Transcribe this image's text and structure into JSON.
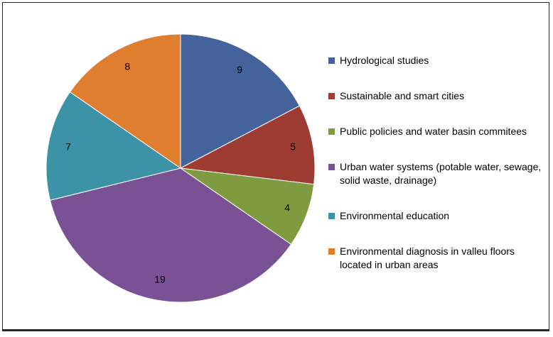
{
  "chart_data": {
    "type": "pie",
    "title": "",
    "categories": [
      "Hydrological studies",
      "Sustainable and smart cities",
      "Public policies and water basin commitees",
      "Urban water systems (potable water, sewage, solid waste, drainage)",
      "Environmental education",
      "Environmental diagnosis in valleu floors located in urban areas"
    ],
    "values": [
      9,
      5,
      4,
      19,
      7,
      8
    ],
    "data_labels": [
      "9",
      "5",
      "4",
      "19",
      "7",
      "8"
    ],
    "total": 52,
    "colors": [
      "#44639C",
      "#9E3B33",
      "#7E9C3F",
      "#7A5195",
      "#3C93A8",
      "#DF7E2E"
    ],
    "legend_position": "right",
    "label_position": "inside-end",
    "start_angle_deg": 0,
    "rotation": "clockwise-from-top"
  }
}
